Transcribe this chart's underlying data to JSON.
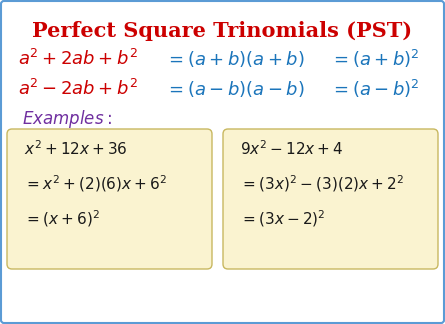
{
  "title": "Perfect Square Trinomials (PST)",
  "title_color": "#CC0000",
  "title_fontsize": 15,
  "bg_color": "#FFFFFF",
  "border_color": "#5B9BD5",
  "red": "#CC0000",
  "blue": "#1B75BB",
  "purple": "#7030A0",
  "dark": "#1a1a1a",
  "box_bg": "#FAF3D0",
  "box_border": "#D4C078",
  "formula_fontsize": 13,
  "example_fontsize": 11,
  "examples_fontsize": 12
}
